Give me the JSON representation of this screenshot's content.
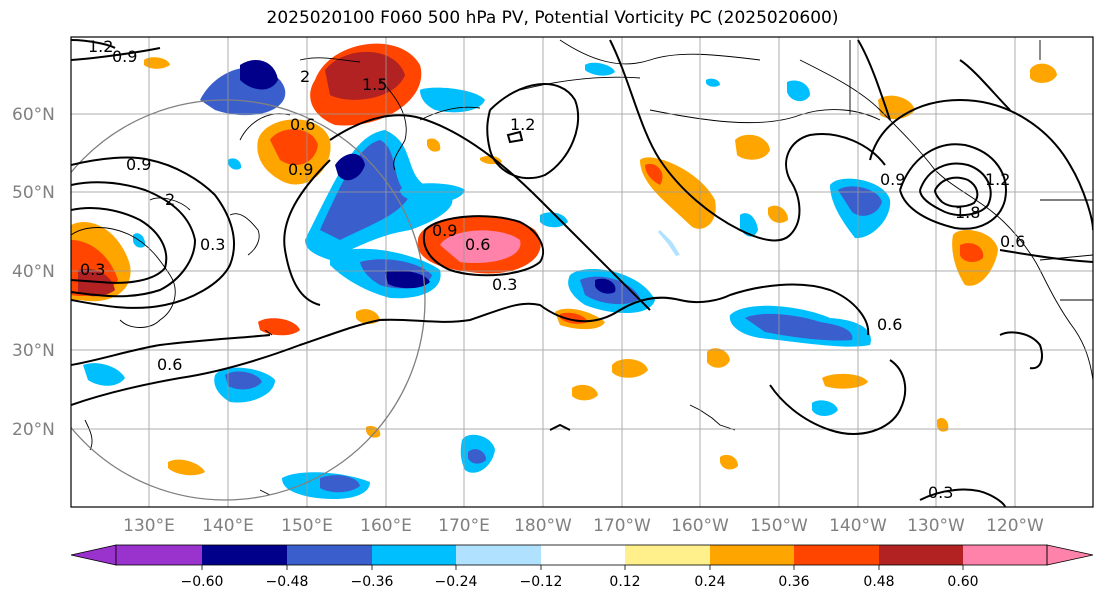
{
  "title": "2025020100 F060 500 hPa PV, Potential Vorticity PC (2025020600)",
  "latitude_labels": [
    "60°N",
    "50°N",
    "40°N",
    "30°N",
    "20°N"
  ],
  "longitude_labels": [
    "130°E",
    "140°E",
    "150°E",
    "160°E",
    "170°E",
    "180°W",
    "170°W",
    "160°W",
    "150°W",
    "140°W",
    "130°W",
    "120°W"
  ],
  "colorbar": {
    "tick_labels": [
      "−0.60",
      "−0.48",
      "−0.36",
      "−0.24",
      "−0.12",
      "0.12",
      "0.24",
      "0.36",
      "0.48",
      "0.60"
    ],
    "colors": [
      "#9a32cd",
      "#00008b",
      "#3a5fcd",
      "#00bfff",
      "#b0e2ff",
      "#ffffff",
      "#fff08c",
      "#ffa500",
      "#ff4500",
      "#b22222",
      "#ff82ab"
    ]
  },
  "contour_labels": [
    "1.2",
    "0.9",
    "0.6",
    "0.3",
    "0.9",
    "2",
    "0.3",
    "0.6",
    "0.9",
    "0.6",
    "0.3",
    "0.6",
    "0.9",
    "1.2",
    "1.8",
    "0.6",
    "0.3",
    "1.2",
    "0.9",
    "2",
    "1.5"
  ]
}
